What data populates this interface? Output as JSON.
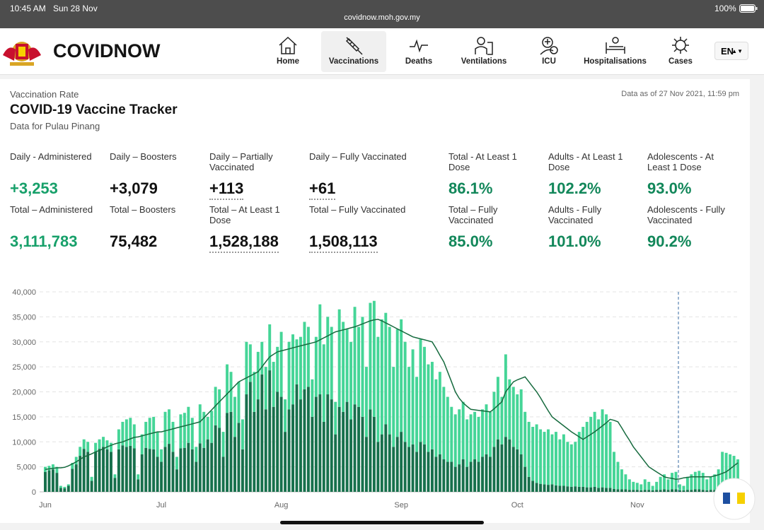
{
  "status_bar": {
    "time": "10:45 AM",
    "date": "Sun 28 Nov",
    "url": "covidnow.moh.gov.my",
    "battery": "100%"
  },
  "header": {
    "logo": "COVIDNOW",
    "nav": [
      "Home",
      "Vaccinations",
      "Deaths",
      "Ventilations",
      "ICU",
      "Hospitalisations",
      "Cases"
    ],
    "language": "EN"
  },
  "page": {
    "kicker": "Vaccination Rate",
    "title": "COVID-19 Vaccine Tracker",
    "subtitle": "Data for Pulau Pinang",
    "updated": "Data as of 27 Nov 2021, 11:59 pm"
  },
  "stats": [
    {
      "label": "Daily - Administered",
      "value": "+3,253"
    },
    {
      "label": "Daily – Boosters",
      "value": "+3,079"
    },
    {
      "label": "Daily – Partially Vaccinated",
      "value": "+113"
    },
    {
      "label": "Daily – Fully Vaccinated",
      "value": "+61"
    },
    {
      "label": "Total - At Least 1 Dose",
      "value": "86.1%"
    },
    {
      "label": "Adults - At Least 1 Dose",
      "value": "102.2%"
    },
    {
      "label": "Adolescents - At Least 1 Dose",
      "value": "93.0%"
    },
    {
      "label": "Total – Administered",
      "value": "3,111,783"
    },
    {
      "label": "Total – Boosters",
      "value": "75,482"
    },
    {
      "label": "Total – At Least 1 Dose",
      "value": "1,528,188"
    },
    {
      "label": "Total – Fully Vaccinated",
      "value": "1,508,113"
    },
    {
      "label": "Total – Fully Vaccinated",
      "value": "85.0%"
    },
    {
      "label": "Adults - Fully Vaccinated",
      "value": "101.0%"
    },
    {
      "label": "Adolescents - Fully Vaccinated",
      "value": "90.2%"
    }
  ],
  "chart_data": {
    "type": "bar",
    "stacked": true,
    "grid": true,
    "categories": [
      "Jun",
      null,
      null,
      null,
      null,
      null,
      null,
      null,
      null,
      null,
      null,
      null,
      null,
      null,
      null,
      null,
      null,
      null,
      null,
      null,
      null,
      null,
      null,
      null,
      null,
      null,
      null,
      null,
      null,
      null,
      "Jul",
      null,
      null,
      null,
      null,
      null,
      null,
      null,
      null,
      null,
      null,
      null,
      null,
      null,
      null,
      null,
      null,
      null,
      null,
      null,
      null,
      null,
      null,
      null,
      null,
      null,
      null,
      null,
      null,
      null,
      null,
      "Aug",
      null,
      null,
      null,
      null,
      null,
      null,
      null,
      null,
      null,
      null,
      null,
      null,
      null,
      null,
      null,
      null,
      null,
      null,
      null,
      null,
      null,
      null,
      null,
      null,
      null,
      null,
      null,
      null,
      null,
      null,
      "Sep",
      null,
      null,
      null,
      null,
      null,
      null,
      null,
      null,
      null,
      null,
      null,
      null,
      null,
      null,
      null,
      null,
      null,
      null,
      null,
      null,
      null,
      null,
      null,
      null,
      null,
      null,
      null,
      null,
      null,
      "Oct",
      null,
      null,
      null,
      null,
      null,
      null,
      null,
      null,
      null,
      null,
      null,
      null,
      null,
      null,
      null,
      null,
      null,
      null,
      null,
      null,
      null,
      null,
      null,
      null,
      null,
      null,
      null,
      null,
      null,
      null,
      "Nov",
      null,
      null,
      null,
      null,
      null,
      null,
      null,
      null,
      null,
      null,
      null,
      null,
      null,
      null,
      null,
      null,
      null,
      null,
      null,
      null,
      null,
      null,
      null,
      null,
      null,
      null
    ],
    "ylim": [
      0,
      40000
    ],
    "yticks": [
      0,
      {
        "value": 5000,
        "label": "5,000"
      },
      {
        "value": 10000,
        "label": "10,000"
      },
      {
        "value": 15000,
        "label": "15,000"
      },
      {
        "value": 20000,
        "label": "20,000"
      },
      {
        "value": 25000,
        "label": "25,000"
      },
      {
        "value": 30000,
        "label": "30,000"
      },
      {
        "value": 35000,
        "label": "35,000"
      },
      {
        "value": 40000,
        "label": "40,000"
      }
    ],
    "series": [
      {
        "color": "#17704c",
        "values": [
          4000,
          4300,
          4500,
          3800,
          800,
          700,
          1200,
          4600,
          5500,
          7200,
          8600,
          8000,
          2200,
          8000,
          8600,
          9000,
          8500,
          8000,
          2800,
          8500,
          9300,
          9000,
          9200,
          8700,
          2500,
          7500,
          8800,
          8600,
          8500,
          7000,
          6000,
          9000,
          9600,
          8000,
          4500,
          8700,
          8800,
          9800,
          8500,
          6000,
          9700,
          8800,
          10500,
          9800,
          13300,
          12800,
          7000,
          15800,
          16000,
          11000,
          13800,
          8500,
          19500,
          22000,
          16000,
          18500,
          23500,
          16500,
          24300,
          17000,
          20000,
          19000,
          12000,
          16500,
          17500,
          21500,
          18500,
          20500,
          21000,
          15000,
          19000,
          19500,
          14000,
          19500,
          18500,
          11500,
          17000,
          16000,
          18000,
          14500,
          17500,
          17000,
          15000,
          11000,
          16500,
          15000,
          10000,
          11500,
          13500,
          11500,
          9000,
          11000,
          12000,
          10000,
          9000,
          9500,
          8000,
          10000,
          9500,
          8000,
          8500,
          7000,
          7500,
          6500,
          6000,
          6000,
          5000,
          5500,
          6500,
          5000,
          6000,
          6500,
          6000,
          7000,
          7500,
          7000,
          9000,
          10500,
          9500,
          11000,
          10500,
          9000,
          8500,
          7500,
          5000,
          3000,
          2200,
          1800,
          1600,
          1500,
          1400,
          1500,
          1300,
          1200,
          1200,
          1100,
          1000,
          1100,
          1000,
          1000,
          900,
          900,
          1000,
          800,
          900,
          800,
          800,
          600,
          500,
          500,
          500,
          400,
          400,
          400,
          300,
          400,
          400,
          300,
          400,
          400,
          500,
          400,
          500,
          500,
          300,
          300,
          400,
          400,
          500,
          500,
          400,
          300,
          400,
          400,
          500,
          600,
          600,
          600,
          500,
          500
        ]
      },
      {
        "color": "#45d597",
        "values": [
          1000,
          900,
          1000,
          1200,
          400,
          300,
          300,
          1200,
          1500,
          1800,
          1900,
          2000,
          800,
          1800,
          1900,
          2000,
          1800,
          1800,
          700,
          4000,
          4700,
          5500,
          5600,
          4800,
          1000,
          4000,
          5200,
          6200,
          6500,
          5000,
          2500,
          7000,
          6900,
          6000,
          2500,
          6800,
          7000,
          7200,
          6300,
          3000,
          7800,
          7200,
          4500,
          6400,
          7700,
          7700,
          5000,
          9700,
          8000,
          8000,
          8200,
          6000,
          10500,
          7500,
          8000,
          9500,
          6500,
          8500,
          9200,
          9000,
          9000,
          13000,
          6500,
          13500,
          14000,
          9000,
          12500,
          13500,
          12000,
          7500,
          12000,
          18000,
          15500,
          15500,
          14500,
          6500,
          19500,
          18000,
          14500,
          15500,
          19500,
          16000,
          20000,
          14000,
          21300,
          23200,
          21000,
          23000,
          22300,
          21500,
          16000,
          21500,
          22500,
          20000,
          16000,
          19000,
          15000,
          20500,
          19500,
          17500,
          17500,
          15500,
          16500,
          14500,
          13000,
          11000,
          10500,
          11000,
          11500,
          9500,
          9500,
          9500,
          9000,
          9500,
          10000,
          9000,
          11000,
          12500,
          9500,
          16500,
          12000,
          12000,
          11000,
          13000,
          11000,
          11000,
          10800,
          11700,
          10900,
          10500,
          11100,
          10000,
          10700,
          9300,
          10300,
          8900,
          8500,
          8900,
          11000,
          12000,
          13100,
          14100,
          15000,
          13700,
          15600,
          14700,
          13200,
          7400,
          5500,
          4000,
          3000,
          2100,
          1600,
          1400,
          1200,
          2100,
          1600,
          900,
          1600,
          2600,
          3000,
          2100,
          3300,
          3500,
          1200,
          900,
          2600,
          3100,
          3500,
          3700,
          3400,
          2200,
          2600,
          3100,
          4000,
          7400,
          7200,
          6900,
          6700,
          6000
        ]
      },
      {
        "type": "line",
        "color": "#166a3e",
        "values": [
          4500,
          4600,
          4700,
          4800,
          4800,
          4900,
          5200,
          5600,
          6000,
          6500,
          7000,
          7300,
          7600,
          8000,
          8300,
          8600,
          9000,
          9300,
          9600,
          9800,
          10000,
          10300,
          10600,
          10900,
          11000,
          11200,
          11400,
          11600,
          11800,
          12000,
          12000,
          12200,
          12400,
          12600,
          12800,
          13000,
          13200,
          13400,
          13600,
          13800,
          14000,
          14800,
          15600,
          16400,
          17200,
          18000,
          18800,
          19600,
          20400,
          21200,
          22000,
          22400,
          22800,
          23200,
          23600,
          24000,
          25000,
          26000,
          27000,
          27500,
          28000,
          28200,
          28400,
          28600,
          28800,
          29000,
          29200,
          29400,
          29600,
          29800,
          30000,
          30400,
          30800,
          31200,
          31600,
          32000,
          32200,
          32400,
          32600,
          32800,
          33000,
          33300,
          33600,
          33900,
          34200,
          34400,
          34500,
          34200,
          33800,
          33400,
          33000,
          32600,
          32200,
          31800,
          31400,
          31000,
          30800,
          30600,
          30400,
          30200,
          30000,
          28700,
          27300,
          26000,
          24000,
          22000,
          20000,
          18700,
          17800,
          17100,
          16500,
          16400,
          16300,
          16200,
          16100,
          16000,
          16600,
          17300,
          18000,
          20000,
          21000,
          22000,
          22400,
          22700,
          23000,
          22000,
          21000,
          20000,
          18800,
          17500,
          16200,
          15000,
          14400,
          13800,
          13200,
          12600,
          12000,
          11500,
          11000,
          10500,
          11000,
          11500,
          12000,
          12600,
          13200,
          13800,
          14500,
          14300,
          14000,
          12800,
          11500,
          10300,
          9000,
          8000,
          7000,
          6000,
          5000,
          4500,
          4000,
          3500,
          3000,
          2800,
          2700,
          2500,
          2600,
          2800,
          2900,
          3000,
          3000,
          3000,
          3000,
          3000,
          3000,
          3200,
          3400,
          3700,
          4000,
          4600,
          5200,
          5800
        ]
      }
    ]
  }
}
